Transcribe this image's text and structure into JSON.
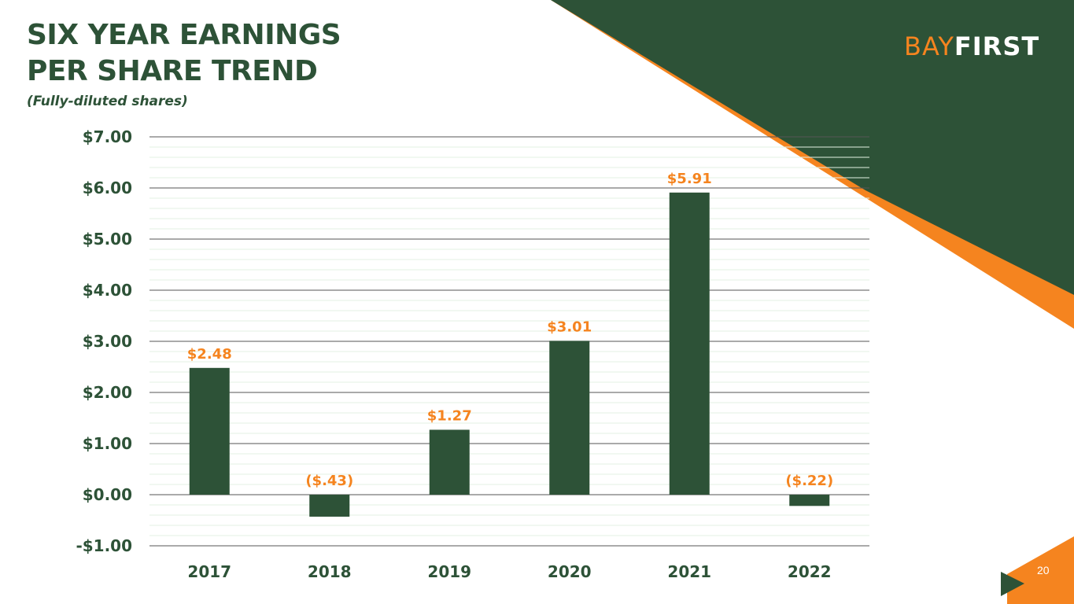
{
  "title_lines": [
    "SIX YEAR EARNINGS",
    "PER SHARE TREND"
  ],
  "subtitle": "(Fully-diluted shares)",
  "logo": {
    "part1": "BAY",
    "part2": "FIRST"
  },
  "page_number": "20",
  "colors": {
    "brand_green": "#2d5237",
    "brand_orange": "#f5841f"
  },
  "chart_data": {
    "type": "bar",
    "categories": [
      "2017",
      "2018",
      "2019",
      "2020",
      "2021",
      "2022"
    ],
    "values": [
      2.48,
      -0.43,
      1.27,
      3.01,
      5.91,
      -0.22
    ],
    "data_labels": [
      "$2.48",
      "($.43)",
      "$1.27",
      "$3.01",
      "$5.91",
      "($.22)"
    ],
    "ylim": [
      -1,
      7
    ],
    "yticks": [
      7,
      6,
      5,
      4,
      3,
      2,
      1,
      0,
      -1
    ],
    "ytick_labels": [
      "$7.00",
      "$6.00",
      "$5.00",
      "$4.00",
      "$3.00",
      "$2.00",
      "$1.00",
      "$0.00",
      "-$1.00"
    ],
    "grid": true,
    "xlabel": "",
    "ylabel": ""
  }
}
